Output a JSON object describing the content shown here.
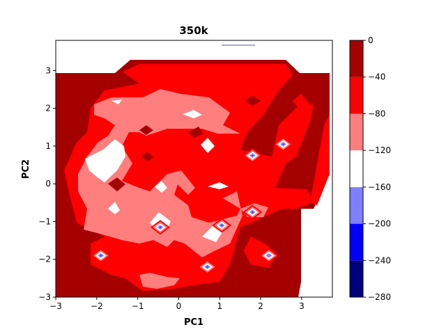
{
  "chart_data": {
    "type": "contourf",
    "title": "350k",
    "xlabel": "PC1",
    "ylabel": "PC2",
    "xlim": [
      -3,
      3.75
    ],
    "ylim": [
      -3,
      3.8
    ],
    "x_ticks": [
      "-3",
      "-2",
      "-1",
      "0",
      "1",
      "2",
      "3"
    ],
    "y_ticks": [
      "-3",
      "-2",
      "-1",
      "0",
      "1",
      "2",
      "3"
    ],
    "colorbar": {
      "levels": [
        -280,
        -240,
        -200,
        -160,
        -120,
        -80,
        -40,
        0
      ],
      "tick_labels": [
        "-280",
        "-240",
        "-200",
        "-160",
        "-120",
        "-80",
        "-40",
        "0"
      ],
      "colors": [
        "#00007f",
        "#0000ff",
        "#7f7fff",
        "#ffffff",
        "#ff7f7f",
        "#ff0000",
        "#a50000"
      ]
    },
    "regions": [
      {
        "level_range": [
          -40,
          0
        ],
        "color": "#a50000",
        "description": "outer and upper-right background"
      },
      {
        "level_range": [
          -80,
          -40
        ],
        "color": "#ff0000",
        "description": "surrounding ring"
      },
      {
        "level_range": [
          -120,
          -80
        ],
        "color": "#ff7f7f",
        "description": "central basin"
      },
      {
        "level_range": [
          -160,
          -120
        ],
        "color": "#ffffff",
        "description": "deep pockets"
      },
      {
        "level_range": [
          -200,
          -160
        ],
        "color": "#7f7fff",
        "description": "deepest minima"
      },
      {
        "level_range": [
          -240,
          -200
        ],
        "color": "#0000ff",
        "description": "minima cores"
      }
    ],
    "minima": [
      {
        "x": 1.8,
        "y": 0.75,
        "level": -200
      },
      {
        "x": 2.55,
        "y": 1.05,
        "level": -200
      },
      {
        "x": 1.8,
        "y": -0.75,
        "level": -200
      },
      {
        "x": -1.9,
        "y": -1.9,
        "level": -240
      },
      {
        "x": 0.7,
        "y": -2.2,
        "level": -200
      },
      {
        "x": 2.2,
        "y": -1.9,
        "level": -160
      },
      {
        "x": -0.45,
        "y": -1.15,
        "level": -200
      },
      {
        "x": 1.05,
        "y": -1.1,
        "level": -200
      }
    ]
  }
}
